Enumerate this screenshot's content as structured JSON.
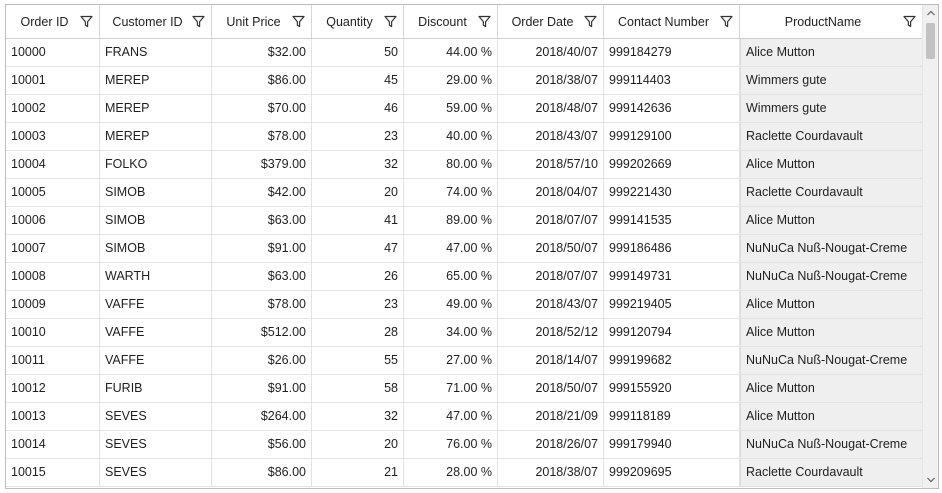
{
  "columns": [
    {
      "key": "order_id",
      "label": "Order ID",
      "width": 94,
      "align": "l"
    },
    {
      "key": "customer_id",
      "label": "Customer ID",
      "width": 112,
      "align": "l"
    },
    {
      "key": "unit_price",
      "label": "Unit Price",
      "width": 100,
      "align": "r"
    },
    {
      "key": "quantity",
      "label": "Quantity",
      "width": 92,
      "align": "r"
    },
    {
      "key": "discount",
      "label": "Discount",
      "width": 94,
      "align": "r"
    },
    {
      "key": "order_date",
      "label": "Order Date",
      "width": 106,
      "align": "r"
    },
    {
      "key": "contact_number",
      "label": "Contact Number",
      "width": 136,
      "align": "l"
    },
    {
      "key": "product_name",
      "label": "ProductName",
      "width": 182,
      "align": "l"
    }
  ],
  "rows": [
    [
      "10000",
      "FRANS",
      "$32.00",
      "50",
      "44.00 %",
      "2018/40/07",
      "999184279",
      "Alice Mutton"
    ],
    [
      "10001",
      "MEREP",
      "$86.00",
      "45",
      "29.00 %",
      "2018/38/07",
      "999114403",
      "Wimmers gute"
    ],
    [
      "10002",
      "MEREP",
      "$70.00",
      "46",
      "59.00 %",
      "2018/48/07",
      "999142636",
      "Wimmers gute"
    ],
    [
      "10003",
      "MEREP",
      "$78.00",
      "23",
      "40.00 %",
      "2018/43/07",
      "999129100",
      "Raclette Courdavault"
    ],
    [
      "10004",
      "FOLKO",
      "$379.00",
      "32",
      "80.00 %",
      "2018/57/10",
      "999202669",
      "Alice Mutton"
    ],
    [
      "10005",
      "SIMOB",
      "$42.00",
      "20",
      "74.00 %",
      "2018/04/07",
      "999221430",
      "Raclette Courdavault"
    ],
    [
      "10006",
      "SIMOB",
      "$63.00",
      "41",
      "89.00 %",
      "2018/07/07",
      "999141535",
      "Alice Mutton"
    ],
    [
      "10007",
      "SIMOB",
      "$91.00",
      "47",
      "47.00 %",
      "2018/50/07",
      "999186486",
      "NuNuCa Nuß-Nougat-Creme"
    ],
    [
      "10008",
      "WARTH",
      "$63.00",
      "26",
      "65.00 %",
      "2018/07/07",
      "999149731",
      "NuNuCa Nuß-Nougat-Creme"
    ],
    [
      "10009",
      "VAFFE",
      "$78.00",
      "23",
      "49.00 %",
      "2018/43/07",
      "999219405",
      "Alice Mutton"
    ],
    [
      "10010",
      "VAFFE",
      "$512.00",
      "28",
      "34.00 %",
      "2018/52/12",
      "999120794",
      "Alice Mutton"
    ],
    [
      "10011",
      "VAFFE",
      "$26.00",
      "55",
      "27.00 %",
      "2018/14/07",
      "999199682",
      "NuNuCa Nuß-Nougat-Creme"
    ],
    [
      "10012",
      "FURIB",
      "$91.00",
      "58",
      "71.00 %",
      "2018/50/07",
      "999155920",
      "Alice Mutton"
    ],
    [
      "10013",
      "SEVES",
      "$264.00",
      "32",
      "47.00 %",
      "2018/21/09",
      "999118189",
      "Alice Mutton"
    ],
    [
      "10014",
      "SEVES",
      "$56.00",
      "20",
      "76.00 %",
      "2018/26/07",
      "999179940",
      "NuNuCa Nuß-Nougat-Creme"
    ],
    [
      "10015",
      "SEVES",
      "$86.00",
      "21",
      "28.00 %",
      "2018/38/07",
      "999209695",
      "Raclette Courdavault"
    ]
  ],
  "icons": {
    "filter": "filter-icon",
    "scroll_up": "chevron-up-icon",
    "scroll_down": "chevron-down-icon"
  },
  "colors": {
    "grid_border": "#bdbdbd",
    "product_cell_bg": "#efefef",
    "scroll_thumb": "#c2c2c2"
  }
}
